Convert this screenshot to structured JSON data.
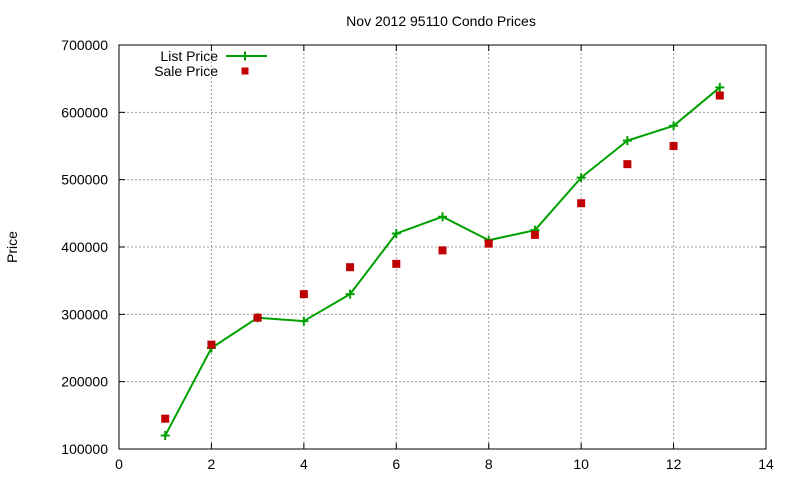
{
  "chart_data": {
    "type": "line",
    "title": "Nov 2012 95110 Condo Prices",
    "xlabel": "",
    "ylabel": "Price",
    "xlim": [
      0,
      14
    ],
    "ylim": [
      100000,
      700000
    ],
    "xticks": [
      0,
      2,
      4,
      6,
      8,
      10,
      12,
      14
    ],
    "yticks": [
      100000,
      200000,
      300000,
      400000,
      500000,
      600000,
      700000
    ],
    "grid": true,
    "legend_position": "top-left",
    "series": [
      {
        "name": "List Price",
        "style": "line+cross",
        "color": "#00a000",
        "x": [
          1,
          2,
          3,
          4,
          5,
          6,
          7,
          8,
          9,
          10,
          11,
          12,
          13
        ],
        "y": [
          120000,
          250000,
          295000,
          290000,
          330000,
          420000,
          445000,
          410000,
          425000,
          503000,
          558000,
          580000,
          637000
        ]
      },
      {
        "name": "Sale Price",
        "style": "square",
        "color": "#c00000",
        "x": [
          1,
          2,
          3,
          4,
          5,
          6,
          7,
          8,
          9,
          10,
          11,
          12,
          13
        ],
        "y": [
          145000,
          255000,
          295000,
          330000,
          370000,
          375000,
          395000,
          405000,
          418000,
          465000,
          523000,
          550000,
          625000
        ]
      }
    ]
  }
}
